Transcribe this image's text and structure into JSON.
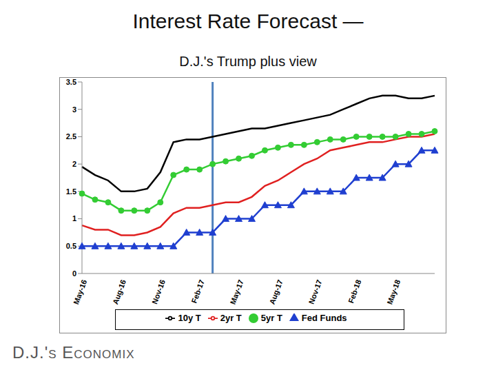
{
  "chart_data": {
    "type": "line",
    "title": "Interest Rate Forecast —",
    "subtitle": "D.J.'s Trump plus view",
    "footer": "D.J.'s Economix",
    "categories": [
      "May-16",
      null,
      null,
      "Aug-16",
      null,
      null,
      "Nov-16",
      null,
      null,
      "Feb-17",
      null,
      null,
      "May-17",
      null,
      null,
      "Aug-17",
      null,
      null,
      "Nov-17",
      null,
      null,
      "Feb-18",
      null,
      null,
      "May-18",
      null,
      null,
      null
    ],
    "series": [
      {
        "name": "Fed Funds",
        "color": "#1f3fd0",
        "marker": "triangle",
        "values": [
          0.5,
          0.5,
          0.5,
          0.5,
          0.5,
          0.5,
          0.5,
          0.5,
          0.75,
          0.75,
          0.75,
          1.0,
          1.0,
          1.0,
          1.25,
          1.25,
          1.25,
          1.5,
          1.5,
          1.5,
          1.5,
          1.75,
          1.75,
          1.75,
          2.0,
          2.0,
          2.25,
          2.25
        ]
      },
      {
        "name": "2yr T",
        "color": "#e02020",
        "marker": "none",
        "values": [
          0.88,
          0.8,
          0.8,
          0.7,
          0.7,
          0.75,
          0.85,
          1.1,
          1.2,
          1.2,
          1.25,
          1.3,
          1.3,
          1.4,
          1.6,
          1.7,
          1.85,
          2.0,
          2.1,
          2.25,
          2.3,
          2.35,
          2.4,
          2.4,
          2.45,
          2.5,
          2.5,
          2.55
        ]
      },
      {
        "name": "5yr T",
        "color": "#33cc33",
        "marker": "circle",
        "values": [
          1.46,
          1.35,
          1.3,
          1.15,
          1.15,
          1.15,
          1.3,
          1.8,
          1.9,
          1.9,
          2.0,
          2.05,
          2.1,
          2.15,
          2.25,
          2.3,
          2.35,
          2.35,
          2.4,
          2.45,
          2.45,
          2.5,
          2.5,
          2.5,
          2.5,
          2.55,
          2.55,
          2.6
        ]
      },
      {
        "name": "10y T",
        "color": "#000000",
        "marker": "none",
        "values": [
          1.95,
          1.8,
          1.7,
          1.5,
          1.5,
          1.55,
          1.85,
          2.4,
          2.45,
          2.45,
          2.5,
          2.55,
          2.6,
          2.65,
          2.65,
          2.7,
          2.75,
          2.8,
          2.85,
          2.9,
          3.0,
          3.1,
          3.2,
          3.25,
          3.25,
          3.2,
          3.2,
          3.25
        ]
      }
    ],
    "ylim": [
      0,
      3.5
    ],
    "yticks": [
      0,
      0.5,
      1,
      1.5,
      2,
      2.5,
      3,
      3.5
    ],
    "grid": false,
    "legend": "bottom",
    "annotations": [
      {
        "type": "vline",
        "x": 10,
        "color": "#4f81bd"
      }
    ]
  }
}
